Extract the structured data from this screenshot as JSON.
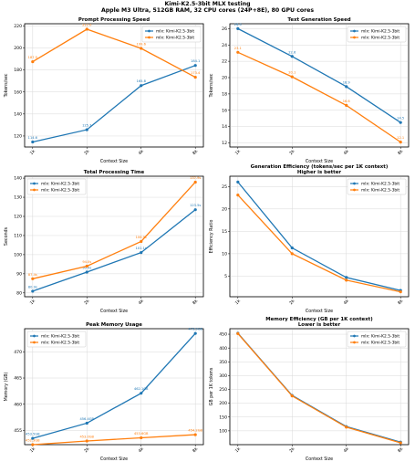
{
  "suptitle": {
    "line1": "Kimi-K2.5-3bit MLX testing",
    "line2": "Apple M3 Ultra, 512GB RAM, 32 CPU cores (24P+8E), 80 GPU cores"
  },
  "colors": {
    "series1": "#1f77b4",
    "series2": "#ff7f0e"
  },
  "chart_data": [
    {
      "type": "line",
      "title": "Prompt Processing Speed",
      "xlabel": "Context Size",
      "ylabel": "Tokens/sec",
      "categories": [
        "1k",
        "2k",
        "4k",
        "8k"
      ],
      "yticks": [
        120,
        140,
        160,
        180,
        200,
        220
      ],
      "ylim": [
        110,
        222
      ],
      "grid": true,
      "legend": "top-right",
      "series": [
        {
          "name": "mlx: Kimi-K2.5-3bit",
          "values": [
            114.6,
            125.7,
            165.8,
            184.1
          ],
          "labels": [
            "114.6",
            "125.7",
            "165.8",
            "184.1"
          ]
        },
        {
          "name": "mlx: Kimi-K2.5-3bit",
          "values": [
            187.5,
            217.0,
            199.6,
            173.4
          ],
          "labels": [
            "187.5",
            "217.0",
            "199.6",
            "173.4"
          ]
        }
      ]
    },
    {
      "type": "line",
      "title": "Text Generation Speed",
      "xlabel": "Context Size",
      "ylabel": "Tokens/sec",
      "categories": [
        "1k",
        "2k",
        "4k",
        "8k"
      ],
      "yticks": [
        12,
        14,
        16,
        18,
        20,
        22,
        24,
        26
      ],
      "ylim": [
        11.5,
        26.6
      ],
      "grid": true,
      "legend": "top-right",
      "series": [
        {
          "name": "mlx: Kimi-K2.5-3bit",
          "values": [
            26.0,
            22.6,
            18.9,
            14.5
          ],
          "labels": [
            "26.0",
            "22.6",
            "18.9",
            "14.5"
          ]
        },
        {
          "name": "mlx: Kimi-K2.5-3bit",
          "values": [
            23.1,
            20.1,
            16.6,
            12.1
          ],
          "labels": [
            "23.1",
            "20.1",
            "16.6",
            "12.1"
          ]
        }
      ]
    },
    {
      "type": "line",
      "title": "Total Processing Time",
      "xlabel": "Context Size",
      "ylabel": "Seconds",
      "categories": [
        "1k",
        "2k",
        "4k",
        "8k"
      ],
      "yticks": [
        80,
        90,
        100,
        110,
        120,
        130,
        140
      ],
      "ylim": [
        78,
        141
      ],
      "grid": true,
      "legend": "top-left",
      "series": [
        {
          "name": "mlx: Kimi-K2.5-3bit",
          "values": [
            80.9,
            90.9,
            101.1,
            123.5
          ],
          "labels": [
            "80.9s",
            "90.9s",
            "101.1s",
            "123.5s"
          ]
        },
        {
          "name": "mlx: Kimi-K2.5-3bit",
          "values": [
            87.4,
            94.0,
            106.9,
            137.9
          ],
          "labels": [
            "87.4s",
            "94.0s",
            "106.9s",
            "137.9s"
          ]
        }
      ]
    },
    {
      "type": "line",
      "title": "Generation Efficiency (tokens/sec per 1K context)\nHigher is better",
      "xlabel": "Context Size",
      "ylabel": "Efficiency Ratio",
      "categories": [
        "1k",
        "2k",
        "4k",
        "8k"
      ],
      "yticks": [
        5,
        10,
        15,
        20,
        25
      ],
      "ylim": [
        0.4,
        27.3
      ],
      "grid": true,
      "legend": "top-right",
      "series": [
        {
          "name": "mlx: Kimi-K2.5-3bit",
          "values": [
            26.0,
            11.3,
            4.7,
            1.8
          ],
          "labels": []
        },
        {
          "name": "mlx: Kimi-K2.5-3bit",
          "values": [
            23.1,
            10.0,
            4.1,
            1.5
          ],
          "labels": []
        }
      ]
    },
    {
      "type": "line",
      "title": "Peak Memory Usage",
      "xlabel": "Context Size",
      "ylabel": "Memory (GB)",
      "categories": [
        "1k",
        "2k",
        "4k",
        "8k"
      ],
      "yticks": [
        455,
        460,
        465,
        470
      ],
      "ylim": [
        452.3,
        474.4
      ],
      "grid": true,
      "legend": "top-left",
      "series": [
        {
          "name": "mlx: Kimi-K2.5-3bit",
          "values": [
            453.5,
            456.4,
            462.1,
            473.5
          ],
          "labels": [
            "453.5GB",
            "456.4GB",
            "462.1GB",
            "473.5GB"
          ]
        },
        {
          "name": "mlx: Kimi-K2.5-3bit",
          "values": [
            452.3,
            453.0,
            453.6,
            454.2
          ],
          "labels": [
            "452.3GB",
            "453.0GB",
            "453.6GB",
            "454.2GB"
          ]
        }
      ]
    },
    {
      "type": "line",
      "title": "Memory Efficiency (GB per 1K context)\nLower is better",
      "xlabel": "Context Size",
      "ylabel": "GB per 1K tokens",
      "categories": [
        "1k",
        "2k",
        "4k",
        "8k"
      ],
      "yticks": [
        100,
        150,
        200,
        250,
        300,
        350,
        400,
        450
      ],
      "ylim": [
        50,
        470
      ],
      "grid": true,
      "legend": "top-right",
      "series": [
        {
          "name": "mlx: Kimi-K2.5-3bit",
          "values": [
            453.5,
            228.2,
            115.5,
            59.2
          ],
          "labels": []
        },
        {
          "name": "mlx: Kimi-K2.5-3bit",
          "values": [
            452.3,
            226.5,
            113.4,
            56.8
          ],
          "labels": []
        }
      ]
    }
  ]
}
